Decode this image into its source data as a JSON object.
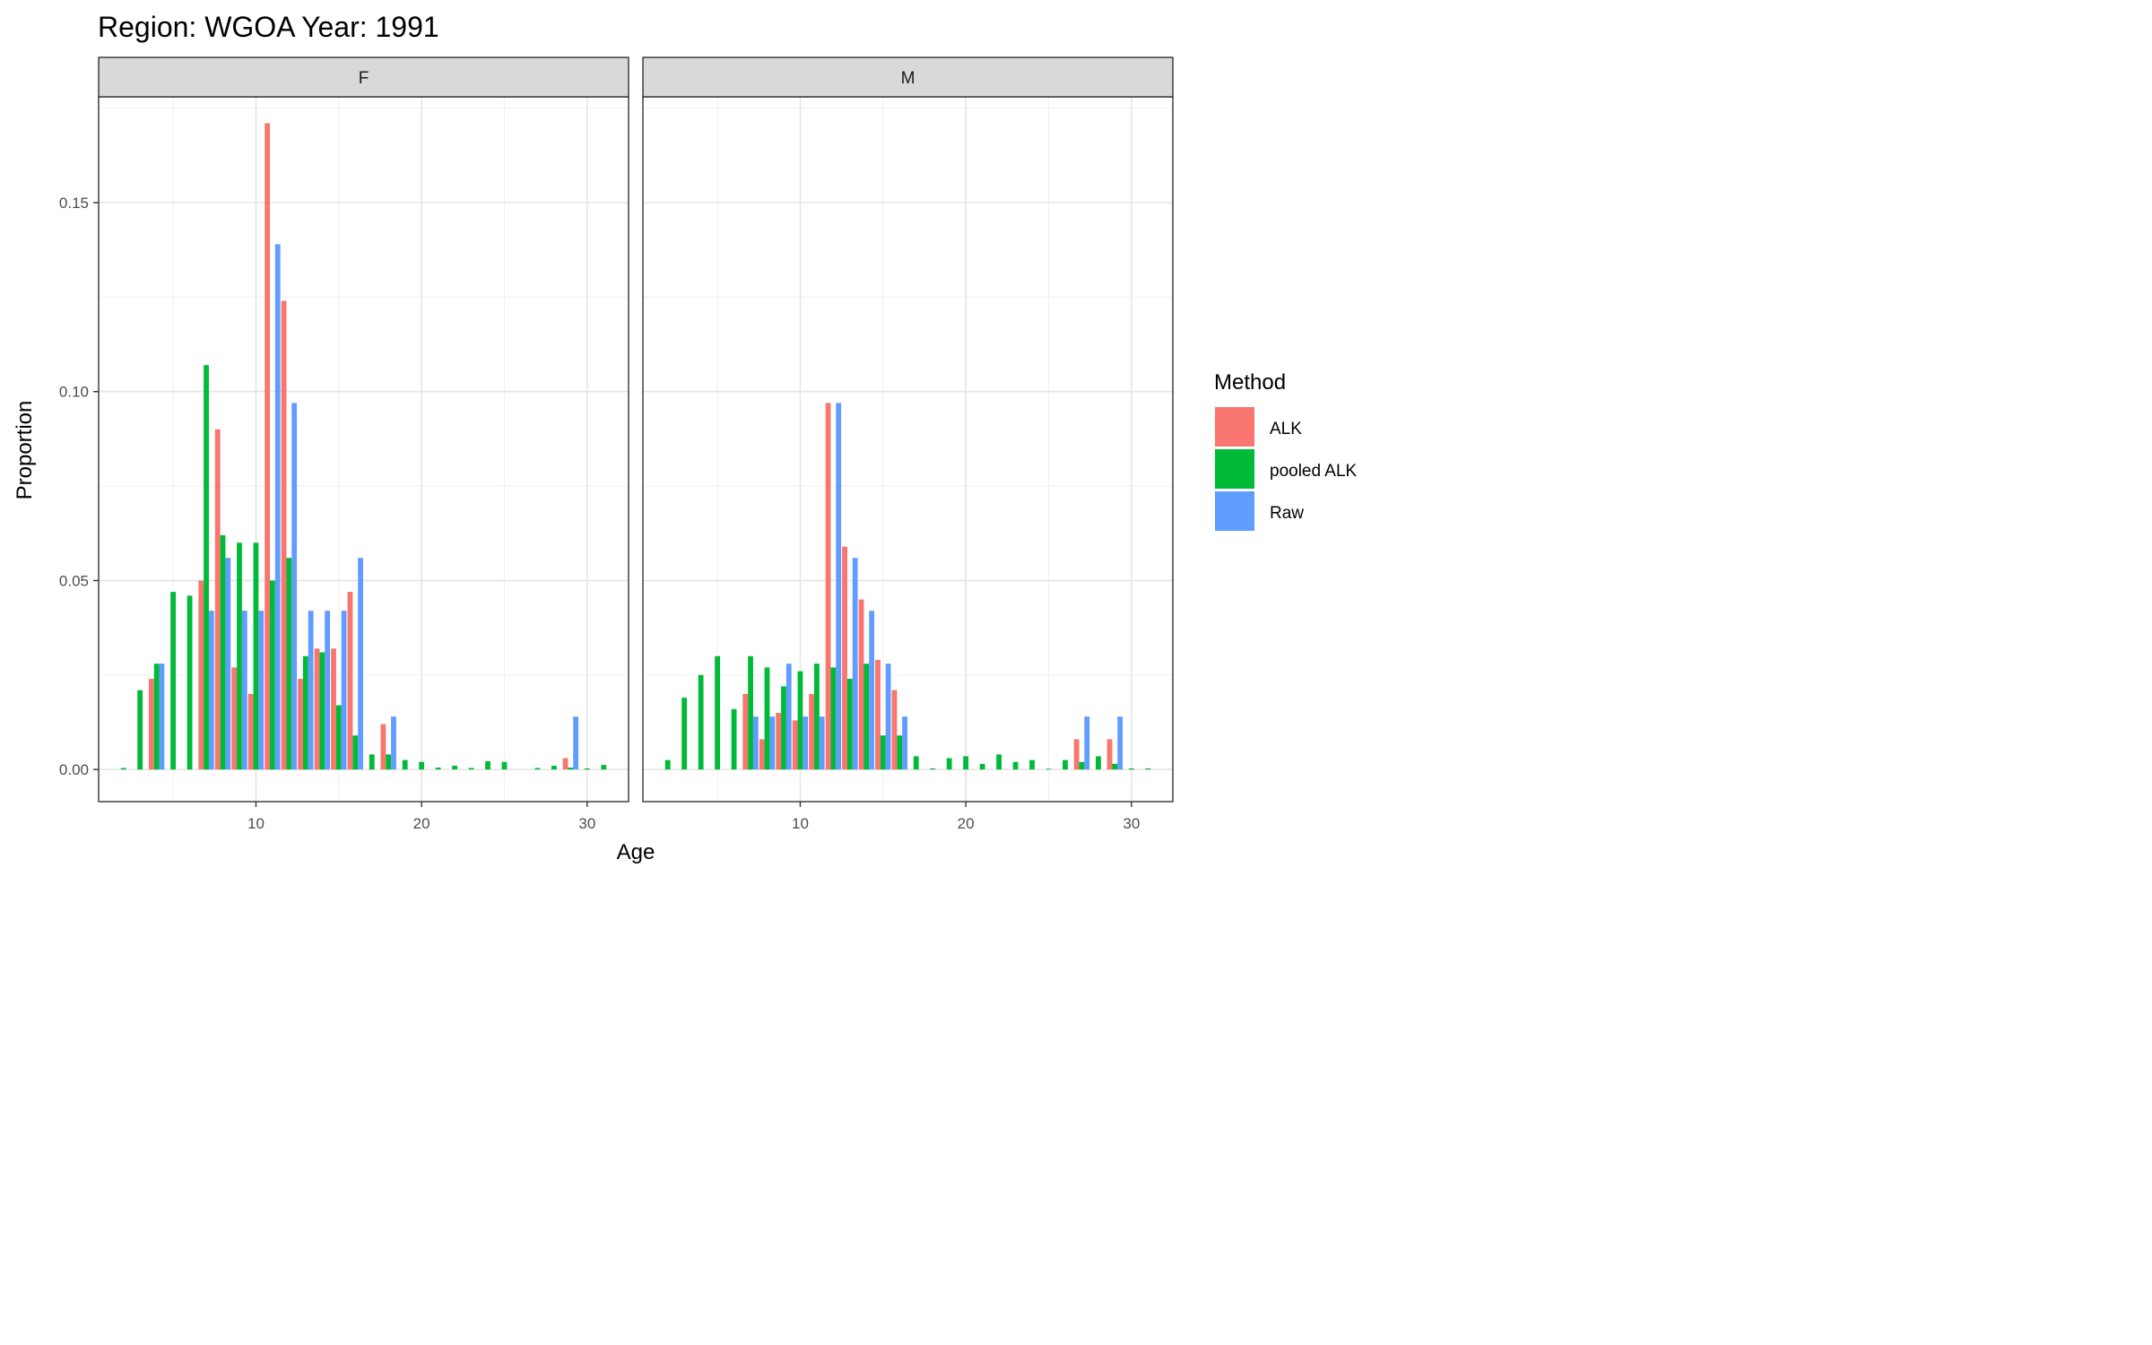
{
  "chart_data": {
    "type": "bar",
    "title": "Region: WGOA Year: 1991",
    "xlabel": "Age",
    "ylabel": "Proportion",
    "xlim": [
      0.5,
      32.5
    ],
    "ylim": [
      -0.0085,
      0.178
    ],
    "x_ticks": [
      10,
      20,
      30
    ],
    "y_ticks": [
      0.0,
      0.05,
      0.1,
      0.15
    ],
    "y_tick_labels": [
      "0.00",
      "0.05",
      "0.10",
      "0.15"
    ],
    "grid": true,
    "legend": {
      "title": "Method",
      "position": "right",
      "entries": [
        "ALK",
        "pooled ALK",
        "Raw"
      ]
    },
    "colors": {
      "ALK": "#F8766D",
      "pooled ALK": "#00BA38",
      "Raw": "#619CFF"
    },
    "panels": [
      {
        "label": "F",
        "series": [
          {
            "name": "ALK",
            "points": [
              [
                4,
                0.024
              ],
              [
                7,
                0.05
              ],
              [
                8,
                0.09
              ],
              [
                9,
                0.027
              ],
              [
                10,
                0.02
              ],
              [
                11,
                0.171
              ],
              [
                12,
                0.124
              ],
              [
                13,
                0.024
              ],
              [
                14,
                0.032
              ],
              [
                15,
                0.032
              ],
              [
                16,
                0.047
              ],
              [
                18,
                0.012
              ],
              [
                29,
                0.003
              ]
            ]
          },
          {
            "name": "pooled ALK",
            "points": [
              [
                2,
                0.0004
              ],
              [
                3,
                0.021
              ],
              [
                4,
                0.028
              ],
              [
                5,
                0.047
              ],
              [
                6,
                0.046
              ],
              [
                7,
                0.107
              ],
              [
                8,
                0.062
              ],
              [
                9,
                0.06
              ],
              [
                10,
                0.06
              ],
              [
                11,
                0.05
              ],
              [
                12,
                0.056
              ],
              [
                13,
                0.03
              ],
              [
                14,
                0.031
              ],
              [
                15,
                0.017
              ],
              [
                16,
                0.009
              ],
              [
                17,
                0.004
              ],
              [
                18,
                0.004
              ],
              [
                19,
                0.0025
              ],
              [
                20,
                0.002
              ],
              [
                21,
                0.0005
              ],
              [
                22,
                0.001
              ],
              [
                23,
                0.0004
              ],
              [
                24,
                0.0022
              ],
              [
                25,
                0.002
              ],
              [
                27,
                0.0004
              ],
              [
                28,
                0.001
              ],
              [
                29,
                0.0005
              ],
              [
                30,
                0.0003
              ],
              [
                31,
                0.0012
              ]
            ]
          },
          {
            "name": "Raw",
            "points": [
              [
                4,
                0.028
              ],
              [
                7,
                0.042
              ],
              [
                8,
                0.056
              ],
              [
                9,
                0.042
              ],
              [
                10,
                0.042
              ],
              [
                11,
                0.139
              ],
              [
                12,
                0.097
              ],
              [
                13,
                0.042
              ],
              [
                14,
                0.042
              ],
              [
                15,
                0.042
              ],
              [
                16,
                0.056
              ],
              [
                18,
                0.014
              ],
              [
                29,
                0.014
              ]
            ]
          }
        ]
      },
      {
        "label": "M",
        "series": [
          {
            "name": "ALK",
            "points": [
              [
                7,
                0.02
              ],
              [
                8,
                0.008
              ],
              [
                9,
                0.015
              ],
              [
                10,
                0.013
              ],
              [
                11,
                0.02
              ],
              [
                12,
                0.097
              ],
              [
                13,
                0.059
              ],
              [
                14,
                0.045
              ],
              [
                15,
                0.029
              ],
              [
                16,
                0.021
              ],
              [
                27,
                0.008
              ],
              [
                29,
                0.008
              ]
            ]
          },
          {
            "name": "pooled ALK",
            "points": [
              [
                2,
                0.0025
              ],
              [
                3,
                0.019
              ],
              [
                4,
                0.025
              ],
              [
                5,
                0.03
              ],
              [
                6,
                0.016
              ],
              [
                7,
                0.03
              ],
              [
                8,
                0.027
              ],
              [
                9,
                0.022
              ],
              [
                10,
                0.026
              ],
              [
                11,
                0.028
              ],
              [
                12,
                0.027
              ],
              [
                13,
                0.024
              ],
              [
                14,
                0.028
              ],
              [
                15,
                0.009
              ],
              [
                16,
                0.009
              ],
              [
                17,
                0.0035
              ],
              [
                18,
                0.0003
              ],
              [
                19,
                0.003
              ],
              [
                20,
                0.0035
              ],
              [
                21,
                0.0015
              ],
              [
                22,
                0.004
              ],
              [
                23,
                0.002
              ],
              [
                24,
                0.0025
              ],
              [
                25,
                0.0002
              ],
              [
                26,
                0.0025
              ],
              [
                27,
                0.002
              ],
              [
                28,
                0.0035
              ],
              [
                29,
                0.0015
              ],
              [
                30,
                0.0003
              ],
              [
                31,
                0.0003
              ]
            ]
          },
          {
            "name": "Raw",
            "points": [
              [
                7,
                0.014
              ],
              [
                8,
                0.014
              ],
              [
                9,
                0.028
              ],
              [
                10,
                0.014
              ],
              [
                11,
                0.014
              ],
              [
                12,
                0.097
              ],
              [
                13,
                0.056
              ],
              [
                14,
                0.042
              ],
              [
                15,
                0.028
              ],
              [
                16,
                0.014
              ],
              [
                27,
                0.014
              ],
              [
                29,
                0.014
              ]
            ]
          }
        ]
      }
    ]
  }
}
